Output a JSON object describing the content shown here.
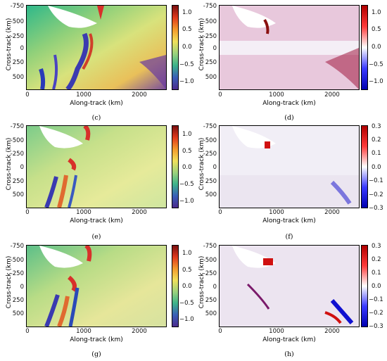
{
  "panels": [
    {
      "id": "c",
      "caption": "(c)",
      "ylabel": "Cross-track (km)",
      "xlabel": "Along-track (km)",
      "yticks": [
        "-750",
        "-500",
        "-250",
        "0",
        "250",
        "500"
      ],
      "xticks": [
        "0",
        "1000",
        "2000"
      ],
      "cbar_ticks": [
        "1.0",
        "0.5",
        "0.0",
        "−0.5",
        "−1.0"
      ],
      "cmap": "jet"
    },
    {
      "id": "d",
      "caption": "(d)",
      "ylabel": "Cross-track (km)",
      "xlabel": "Along-track (km)",
      "yticks": [
        "-750",
        "-500",
        "-250",
        "0",
        "250",
        "500"
      ],
      "xticks": [
        "0",
        "1000",
        "2000"
      ],
      "cbar_ticks": [
        "1.0",
        "0.5",
        "0.0",
        "−0.5",
        "−1.0"
      ],
      "cmap": "bwr"
    },
    {
      "id": "e",
      "caption": "(e)",
      "ylabel": "Cross-track (km)",
      "xlabel": "Along-track (km)",
      "yticks": [
        "-750",
        "-500",
        "-250",
        "0",
        "250",
        "500"
      ],
      "xticks": [
        "0",
        "1000",
        "2000"
      ],
      "cbar_ticks": [
        "1.0",
        "0.5",
        "0.0",
        "−0.5",
        "−1.0"
      ],
      "cmap": "jet"
    },
    {
      "id": "f",
      "caption": "(f)",
      "ylabel": "Cross-track (km)",
      "xlabel": "Along-track (km)",
      "yticks": [
        "-750",
        "-500",
        "-250",
        "0",
        "250",
        "500"
      ],
      "xticks": [
        "0",
        "1000",
        "2000"
      ],
      "cbar_ticks": [
        "0.3",
        "0.2",
        "0.1",
        "0.0",
        "−0.1",
        "−0.2",
        "−0.3"
      ],
      "cmap": "bwr"
    },
    {
      "id": "g",
      "caption": "(g)",
      "ylabel": "Cross-track (km)",
      "xlabel": "Along-track (km)",
      "yticks": [
        "-750",
        "-500",
        "-250",
        "0",
        "250",
        "500"
      ],
      "xticks": [
        "0",
        "1000",
        "2000"
      ],
      "cbar_ticks": [
        "1.0",
        "0.5",
        "0.0",
        "−0.5",
        "−1.0"
      ],
      "cmap": "jet"
    },
    {
      "id": "h",
      "caption": "(h)",
      "ylabel": "Cross-track (km)",
      "xlabel": "Along-track (km)",
      "yticks": [
        "-750",
        "-500",
        "-250",
        "0",
        "250",
        "500"
      ],
      "xticks": [
        "0",
        "1000",
        "2000"
      ],
      "cbar_ticks": [
        "0.3",
        "0.2",
        "0.1",
        "0.0",
        "−0.1",
        "−0.2",
        "−0.3"
      ],
      "cmap": "bwr"
    }
  ]
}
